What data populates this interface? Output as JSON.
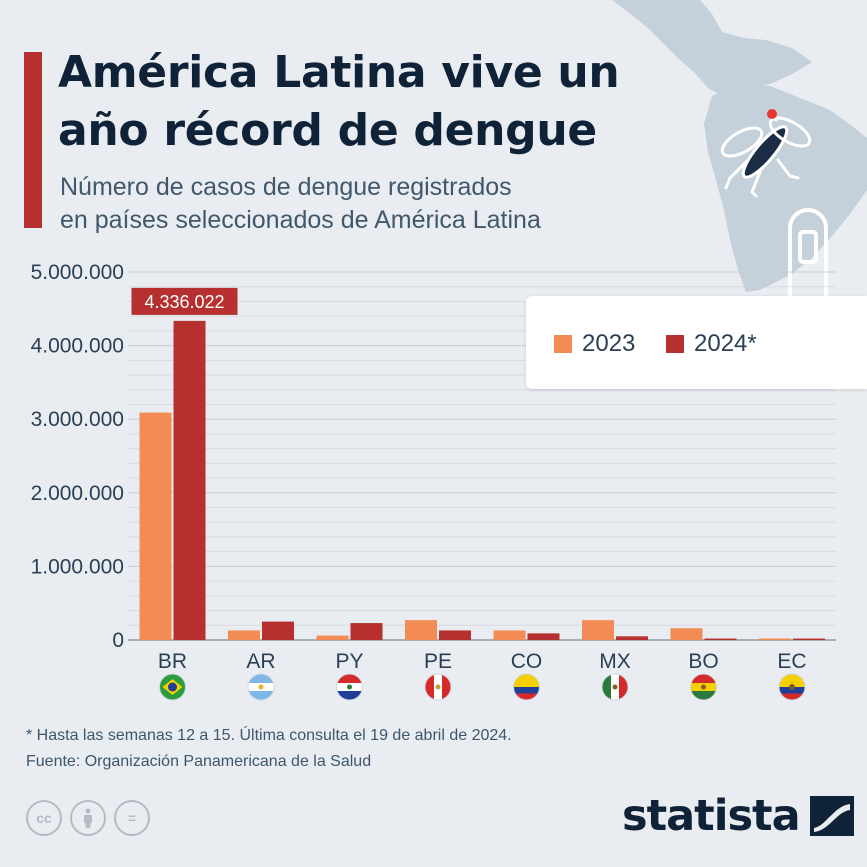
{
  "header": {
    "title_line1": "América Latina vive un",
    "title_line2": "año récord de dengue",
    "subtitle_line1": "Número de casos de dengue registrados",
    "subtitle_line2": "en países seleccionados de América Latina"
  },
  "legend": {
    "label_2023": "2023",
    "label_2024": "2024*"
  },
  "colors": {
    "color_2023": "#f28c54",
    "color_2024": "#b5302f",
    "grid": "#c8ced6",
    "axis_text": "#2a3f55"
  },
  "chart_data": {
    "type": "bar",
    "title": "América Latina vive un año récord de dengue",
    "subtitle": "Número de casos de dengue registrados en países seleccionados de América Latina",
    "categories": [
      "BR",
      "AR",
      "PY",
      "PE",
      "CO",
      "MX",
      "BO",
      "EC"
    ],
    "series": [
      {
        "name": "2023",
        "values": [
          3090000,
          130000,
          60000,
          270000,
          130000,
          270000,
          160000,
          20000
        ]
      },
      {
        "name": "2024*",
        "values": [
          4336022,
          250000,
          230000,
          130000,
          90000,
          50000,
          20000,
          20000
        ]
      }
    ],
    "ylim": [
      0,
      5000000
    ],
    "yticks": [
      0,
      1000000,
      2000000,
      3000000,
      4000000,
      5000000
    ],
    "ytick_labels": [
      "0",
      "1.000.000",
      "2.000.000",
      "3.000.000",
      "4.000.000",
      "5.000.000"
    ],
    "annotation": {
      "category": "BR",
      "series": "2024*",
      "label": "4.336.022"
    },
    "xlabel": "",
    "ylabel": "",
    "legend_position": "top-right"
  },
  "footer": {
    "note": "* Hasta las semanas 12 a 15. Última consulta el 19 de abril de 2024.",
    "source": "Fuente: Organización Panamericana de la Salud",
    "license_icons": [
      "cc-icon",
      "attribution-icon",
      "no-derivatives-icon"
    ],
    "license_labels": [
      "cc",
      "",
      "="
    ],
    "logo_text": "statista"
  }
}
